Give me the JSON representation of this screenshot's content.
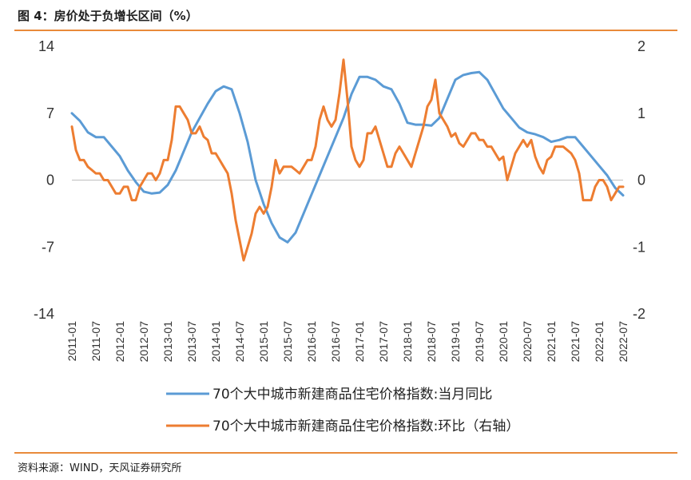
{
  "header": {
    "title": "图 4：房价处于负增长区间（%）"
  },
  "footer": {
    "source": "资料来源：WIND，天风证券研究所"
  },
  "chart_data": {
    "type": "line",
    "title": "图 4：房价处于负增长区间（%）",
    "legend_position": "bottom",
    "grid": false,
    "y_left": {
      "range": [
        -14,
        14
      ],
      "ticks": [
        "14",
        "7",
        "0",
        "-7",
        "-14"
      ]
    },
    "y_right": {
      "range": [
        -2,
        2
      ],
      "ticks": [
        "2",
        "1",
        "0",
        "-1",
        "-2"
      ]
    },
    "x_ticks": [
      "2011-01",
      "2011-07",
      "2012-01",
      "2012-07",
      "2013-01",
      "2013-07",
      "2014-01",
      "2014-07",
      "2015-01",
      "2015-07",
      "2016-01",
      "2016-07",
      "2017-01",
      "2017-07",
      "2018-01",
      "2018-07",
      "2019-01",
      "2019-07",
      "2020-01",
      "2020-07",
      "2021-01",
      "2021-07",
      "2022-01",
      "2022-07"
    ],
    "series": [
      {
        "name": "70个大中城市新建商品住宅价格指数:当月同比",
        "axis": "left",
        "color": "#5b9bd5",
        "points": [
          [
            "2011-01",
            7.0
          ],
          [
            "2011-03",
            6.2
          ],
          [
            "2011-05",
            5.0
          ],
          [
            "2011-07",
            4.5
          ],
          [
            "2011-09",
            4.5
          ],
          [
            "2011-11",
            3.5
          ],
          [
            "2012-01",
            2.5
          ],
          [
            "2012-03",
            1.0
          ],
          [
            "2012-05",
            -0.2
          ],
          [
            "2012-07",
            -1.2
          ],
          [
            "2012-09",
            -1.4
          ],
          [
            "2012-11",
            -1.3
          ],
          [
            "2013-01",
            -0.5
          ],
          [
            "2013-03",
            1.0
          ],
          [
            "2013-05",
            3.0
          ],
          [
            "2013-07",
            5.0
          ],
          [
            "2013-09",
            6.5
          ],
          [
            "2013-11",
            8.0
          ],
          [
            "2014-01",
            9.3
          ],
          [
            "2014-03",
            9.8
          ],
          [
            "2014-05",
            9.5
          ],
          [
            "2014-07",
            7.0
          ],
          [
            "2014-09",
            4.0
          ],
          [
            "2014-11",
            0.0
          ],
          [
            "2015-01",
            -2.5
          ],
          [
            "2015-03",
            -4.5
          ],
          [
            "2015-05",
            -6.0
          ],
          [
            "2015-07",
            -6.5
          ],
          [
            "2015-09",
            -5.5
          ],
          [
            "2015-11",
            -3.5
          ],
          [
            "2016-01",
            -1.5
          ],
          [
            "2016-03",
            0.5
          ],
          [
            "2016-05",
            2.5
          ],
          [
            "2016-07",
            4.5
          ],
          [
            "2016-09",
            6.5
          ],
          [
            "2016-11",
            9.0
          ],
          [
            "2017-01",
            10.8
          ],
          [
            "2017-03",
            10.8
          ],
          [
            "2017-05",
            10.5
          ],
          [
            "2017-07",
            9.8
          ],
          [
            "2017-09",
            9.5
          ],
          [
            "2017-11",
            8.0
          ],
          [
            "2018-01",
            6.0
          ],
          [
            "2018-03",
            5.8
          ],
          [
            "2018-05",
            5.8
          ],
          [
            "2018-07",
            5.7
          ],
          [
            "2018-09",
            6.5
          ],
          [
            "2018-11",
            8.5
          ],
          [
            "2019-01",
            10.5
          ],
          [
            "2019-03",
            11.0
          ],
          [
            "2019-05",
            11.2
          ],
          [
            "2019-07",
            11.3
          ],
          [
            "2019-09",
            10.5
          ],
          [
            "2019-11",
            9.0
          ],
          [
            "2020-01",
            7.5
          ],
          [
            "2020-03",
            6.5
          ],
          [
            "2020-05",
            5.5
          ],
          [
            "2020-07",
            5.0
          ],
          [
            "2020-09",
            4.8
          ],
          [
            "2020-11",
            4.5
          ],
          [
            "2021-01",
            4.0
          ],
          [
            "2021-03",
            4.2
          ],
          [
            "2021-05",
            4.5
          ],
          [
            "2021-07",
            4.5
          ],
          [
            "2021-09",
            3.5
          ],
          [
            "2021-11",
            2.5
          ],
          [
            "2022-01",
            1.5
          ],
          [
            "2022-03",
            0.5
          ],
          [
            "2022-05",
            -0.8
          ],
          [
            "2022-07",
            -1.6
          ]
        ]
      },
      {
        "name": "70个大中城市新建商品住宅价格指数:环比（右轴）",
        "axis": "right",
        "color": "#ed7d31",
        "points": [
          [
            "2011-01",
            0.8
          ],
          [
            "2011-02",
            0.45
          ],
          [
            "2011-03",
            0.3
          ],
          [
            "2011-04",
            0.3
          ],
          [
            "2011-05",
            0.2
          ],
          [
            "2011-06",
            0.15
          ],
          [
            "2011-07",
            0.1
          ],
          [
            "2011-08",
            0.1
          ],
          [
            "2011-09",
            0.0
          ],
          [
            "2011-10",
            0.0
          ],
          [
            "2011-11",
            -0.1
          ],
          [
            "2011-12",
            -0.2
          ],
          [
            "2012-01",
            -0.2
          ],
          [
            "2012-02",
            -0.1
          ],
          [
            "2012-03",
            -0.1
          ],
          [
            "2012-04",
            -0.3
          ],
          [
            "2012-05",
            -0.3
          ],
          [
            "2012-06",
            -0.1
          ],
          [
            "2012-07",
            0.0
          ],
          [
            "2012-08",
            0.1
          ],
          [
            "2012-09",
            0.1
          ],
          [
            "2012-10",
            0.0
          ],
          [
            "2012-11",
            0.1
          ],
          [
            "2012-12",
            0.3
          ],
          [
            "2013-01",
            0.3
          ],
          [
            "2013-02",
            0.6
          ],
          [
            "2013-03",
            1.1
          ],
          [
            "2013-04",
            1.1
          ],
          [
            "2013-05",
            1.0
          ],
          [
            "2013-06",
            0.9
          ],
          [
            "2013-07",
            0.7
          ],
          [
            "2013-08",
            0.7
          ],
          [
            "2013-09",
            0.8
          ],
          [
            "2013-10",
            0.65
          ],
          [
            "2013-11",
            0.6
          ],
          [
            "2013-12",
            0.4
          ],
          [
            "2014-01",
            0.4
          ],
          [
            "2014-02",
            0.3
          ],
          [
            "2014-03",
            0.2
          ],
          [
            "2014-04",
            0.1
          ],
          [
            "2014-05",
            -0.2
          ],
          [
            "2014-06",
            -0.6
          ],
          [
            "2014-07",
            -0.9
          ],
          [
            "2014-08",
            -1.2
          ],
          [
            "2014-09",
            -1.0
          ],
          [
            "2014-10",
            -0.8
          ],
          [
            "2014-11",
            -0.5
          ],
          [
            "2014-12",
            -0.4
          ],
          [
            "2015-01",
            -0.5
          ],
          [
            "2015-02",
            -0.4
          ],
          [
            "2015-03",
            -0.1
          ],
          [
            "2015-04",
            0.3
          ],
          [
            "2015-05",
            0.1
          ],
          [
            "2015-06",
            0.2
          ],
          [
            "2015-07",
            0.2
          ],
          [
            "2015-08",
            0.2
          ],
          [
            "2015-09",
            0.15
          ],
          [
            "2015-10",
            0.1
          ],
          [
            "2015-11",
            0.2
          ],
          [
            "2015-12",
            0.3
          ],
          [
            "2016-01",
            0.3
          ],
          [
            "2016-02",
            0.5
          ],
          [
            "2016-03",
            0.9
          ],
          [
            "2016-04",
            1.1
          ],
          [
            "2016-05",
            0.9
          ],
          [
            "2016-06",
            0.8
          ],
          [
            "2016-07",
            0.9
          ],
          [
            "2016-08",
            1.3
          ],
          [
            "2016-09",
            1.8
          ],
          [
            "2016-10",
            1.2
          ],
          [
            "2016-11",
            0.5
          ],
          [
            "2016-12",
            0.3
          ],
          [
            "2017-01",
            0.2
          ],
          [
            "2017-02",
            0.3
          ],
          [
            "2017-03",
            0.7
          ],
          [
            "2017-04",
            0.7
          ],
          [
            "2017-05",
            0.8
          ],
          [
            "2017-06",
            0.6
          ],
          [
            "2017-07",
            0.4
          ],
          [
            "2017-08",
            0.2
          ],
          [
            "2017-09",
            0.2
          ],
          [
            "2017-10",
            0.4
          ],
          [
            "2017-11",
            0.5
          ],
          [
            "2017-12",
            0.4
          ],
          [
            "2018-01",
            0.3
          ],
          [
            "2018-02",
            0.2
          ],
          [
            "2018-03",
            0.4
          ],
          [
            "2018-04",
            0.6
          ],
          [
            "2018-05",
            0.8
          ],
          [
            "2018-06",
            1.1
          ],
          [
            "2018-07",
            1.2
          ],
          [
            "2018-08",
            1.5
          ],
          [
            "2018-09",
            1.0
          ],
          [
            "2018-10",
            0.9
          ],
          [
            "2018-11",
            0.8
          ],
          [
            "2018-12",
            0.65
          ],
          [
            "2019-01",
            0.7
          ],
          [
            "2019-02",
            0.55
          ],
          [
            "2019-03",
            0.5
          ],
          [
            "2019-04",
            0.6
          ],
          [
            "2019-05",
            0.7
          ],
          [
            "2019-06",
            0.7
          ],
          [
            "2019-07",
            0.6
          ],
          [
            "2019-08",
            0.6
          ],
          [
            "2019-09",
            0.5
          ],
          [
            "2019-10",
            0.5
          ],
          [
            "2019-11",
            0.4
          ],
          [
            "2019-12",
            0.3
          ],
          [
            "2020-01",
            0.35
          ],
          [
            "2020-02",
            0.0
          ],
          [
            "2020-03",
            0.2
          ],
          [
            "2020-04",
            0.4
          ],
          [
            "2020-05",
            0.5
          ],
          [
            "2020-06",
            0.6
          ],
          [
            "2020-07",
            0.5
          ],
          [
            "2020-08",
            0.6
          ],
          [
            "2020-09",
            0.35
          ],
          [
            "2020-10",
            0.2
          ],
          [
            "2020-11",
            0.1
          ],
          [
            "2020-12",
            0.3
          ],
          [
            "2021-01",
            0.35
          ],
          [
            "2021-02",
            0.5
          ],
          [
            "2021-03",
            0.5
          ],
          [
            "2021-04",
            0.5
          ],
          [
            "2021-05",
            0.45
          ],
          [
            "2021-06",
            0.4
          ],
          [
            "2021-07",
            0.3
          ],
          [
            "2021-08",
            0.1
          ],
          [
            "2021-09",
            -0.3
          ],
          [
            "2021-10",
            -0.3
          ],
          [
            "2021-11",
            -0.3
          ],
          [
            "2021-12",
            -0.1
          ],
          [
            "2022-01",
            0.0
          ],
          [
            "2022-02",
            0.0
          ],
          [
            "2022-03",
            -0.1
          ],
          [
            "2022-04",
            -0.3
          ],
          [
            "2022-05",
            -0.2
          ],
          [
            "2022-06",
            -0.1
          ],
          [
            "2022-07",
            -0.1
          ]
        ]
      }
    ]
  }
}
